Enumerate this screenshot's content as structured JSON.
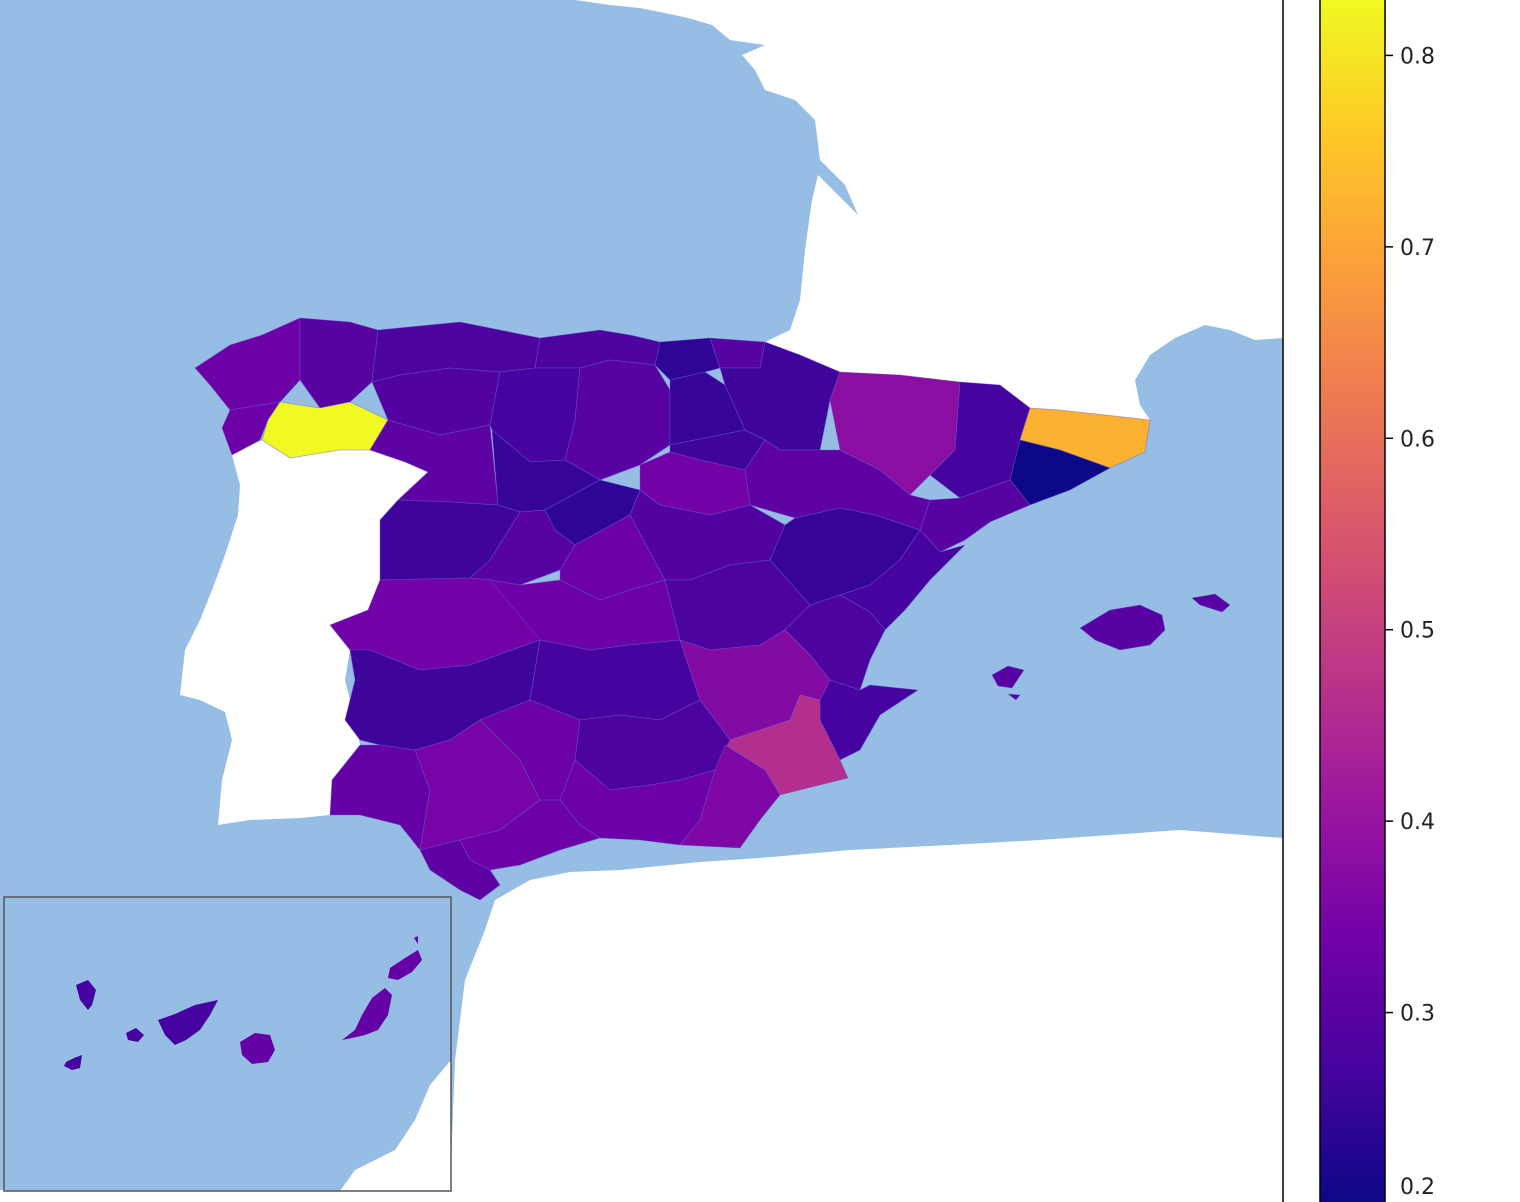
{
  "colorbar": {
    "colormap": "plasma",
    "min": 0.2,
    "max": 0.83,
    "ticks": [
      "0.2",
      "0.3",
      "0.4",
      "0.5",
      "0.6",
      "0.7",
      "0.8"
    ],
    "stops": [
      "#0d0887",
      "#46039f",
      "#7201a8",
      "#9c179e",
      "#bd3786",
      "#d8576b",
      "#ed7953",
      "#fb9f3a",
      "#fdca26",
      "#f0f921"
    ]
  },
  "colors": {
    "sea": "#96bee4",
    "land": "#ffffff",
    "region_border": "#6a5acd"
  },
  "chart_data": {
    "type": "heatmap",
    "subtype": "choropleth",
    "map": "Spain provinces",
    "scale": {
      "min": 0.2,
      "max": 0.83
    },
    "legend": "colorbar-right",
    "inset": "Canary Islands, bottom-left",
    "regions": [
      {
        "id": "a-coruna",
        "value": 0.33
      },
      {
        "id": "lugo",
        "value": 0.3
      },
      {
        "id": "ourense",
        "value": 0.83
      },
      {
        "id": "pontevedra",
        "value": 0.33
      },
      {
        "id": "asturias",
        "value": 0.28
      },
      {
        "id": "leon",
        "value": 0.29
      },
      {
        "id": "zamora",
        "value": 0.31
      },
      {
        "id": "cantabria",
        "value": 0.28
      },
      {
        "id": "palencia",
        "value": 0.27
      },
      {
        "id": "burgos",
        "value": 0.3
      },
      {
        "id": "valladolid",
        "value": 0.25
      },
      {
        "id": "bizkaia",
        "value": 0.24
      },
      {
        "id": "gipuzkoa",
        "value": 0.3
      },
      {
        "id": "araba",
        "value": 0.25
      },
      {
        "id": "la-rioja",
        "value": 0.26
      },
      {
        "id": "navarra",
        "value": 0.26
      },
      {
        "id": "huesca",
        "value": 0.38
      },
      {
        "id": "lleida",
        "value": 0.27
      },
      {
        "id": "girona",
        "value": 0.72
      },
      {
        "id": "barcelona",
        "value": 0.2
      },
      {
        "id": "tarragona",
        "value": 0.3
      },
      {
        "id": "zaragoza",
        "value": 0.31
      },
      {
        "id": "soria",
        "value": 0.34
      },
      {
        "id": "segovia",
        "value": 0.24
      },
      {
        "id": "salamanca",
        "value": 0.26
      },
      {
        "id": "avila",
        "value": 0.3
      },
      {
        "id": "madrid",
        "value": 0.33
      },
      {
        "id": "guadalajara",
        "value": 0.29
      },
      {
        "id": "teruel",
        "value": 0.25
      },
      {
        "id": "castellon",
        "value": 0.27
      },
      {
        "id": "caceres",
        "value": 0.34
      },
      {
        "id": "toledo",
        "value": 0.33
      },
      {
        "id": "cuenca",
        "value": 0.28
      },
      {
        "id": "valencia",
        "value": 0.28
      },
      {
        "id": "badajoz",
        "value": 0.26
      },
      {
        "id": "ciudad-real",
        "value": 0.27
      },
      {
        "id": "albacete",
        "value": 0.37
      },
      {
        "id": "alicante",
        "value": 0.27
      },
      {
        "id": "murcia",
        "value": 0.46
      },
      {
        "id": "huelva",
        "value": 0.32
      },
      {
        "id": "sevilla",
        "value": 0.35
      },
      {
        "id": "cordoba",
        "value": 0.33
      },
      {
        "id": "jaen",
        "value": 0.28
      },
      {
        "id": "granada",
        "value": 0.33
      },
      {
        "id": "almeria",
        "value": 0.36
      },
      {
        "id": "malaga",
        "value": 0.33
      },
      {
        "id": "cadiz",
        "value": 0.31
      },
      {
        "id": "baleares",
        "value": 0.3
      },
      {
        "id": "santa-cruz-de-tenerife",
        "value": 0.27
      },
      {
        "id": "las-palmas",
        "value": 0.32
      }
    ]
  }
}
